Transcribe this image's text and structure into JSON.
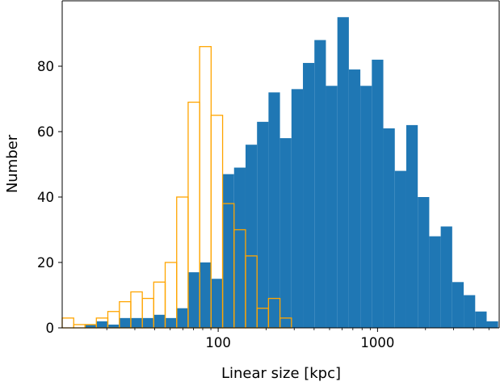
{
  "chart_data": {
    "type": "bar",
    "xlabel": "Linear size [kpc]",
    "ylabel": "Number",
    "xscale": "log",
    "xlim": [
      10.5,
      5800
    ],
    "ylim": [
      0,
      100
    ],
    "xticks": [
      100,
      1000
    ],
    "xtick_labels": [
      "100",
      "1000"
    ],
    "yticks": [
      0,
      20,
      40,
      60,
      80
    ],
    "ytick_labels": [
      "0",
      "20",
      "40",
      "60",
      "80"
    ],
    "grid": false,
    "legend": "none",
    "series": [
      {
        "style": "filled",
        "color": "#1f77b4",
        "bin_edges": [
          14.6,
          17.2,
          20.3,
          24.0,
          28.3,
          33.4,
          39.4,
          46.5,
          54.9,
          64.8,
          76.5,
          90.3,
          106.6,
          125.8,
          148.5,
          175.3,
          206.9,
          244.2,
          288.3,
          340.3,
          401.7,
          474.2,
          559.8,
          660.8,
          780.1,
          920.9,
          1087.1,
          1283.3,
          1514.9,
          1788.3,
          2111.0,
          2492.0,
          2941.8,
          3472.8,
          4099.6,
          4839.5,
          5713.0
        ],
        "values": [
          1,
          2,
          1,
          3,
          3,
          3,
          4,
          3,
          6,
          17,
          20,
          15,
          47,
          49,
          56,
          63,
          72,
          58,
          73,
          81,
          88,
          74,
          95,
          79,
          74,
          82,
          61,
          48,
          62,
          40,
          28,
          31,
          14,
          10,
          5,
          2
        ]
      },
      {
        "style": "outline",
        "color": "#ffa500",
        "bin_edges": [
          10.5,
          12.4,
          14.6,
          17.2,
          20.3,
          24.0,
          28.3,
          33.4,
          39.4,
          46.5,
          54.9,
          64.8,
          76.5,
          90.3,
          106.6,
          125.8,
          148.5,
          175.3,
          206.9,
          244.2,
          288.3
        ],
        "values": [
          3,
          1,
          1,
          3,
          5,
          8,
          11,
          9,
          14,
          20,
          40,
          69,
          86,
          65,
          38,
          30,
          22,
          6,
          9,
          3
        ]
      }
    ]
  }
}
